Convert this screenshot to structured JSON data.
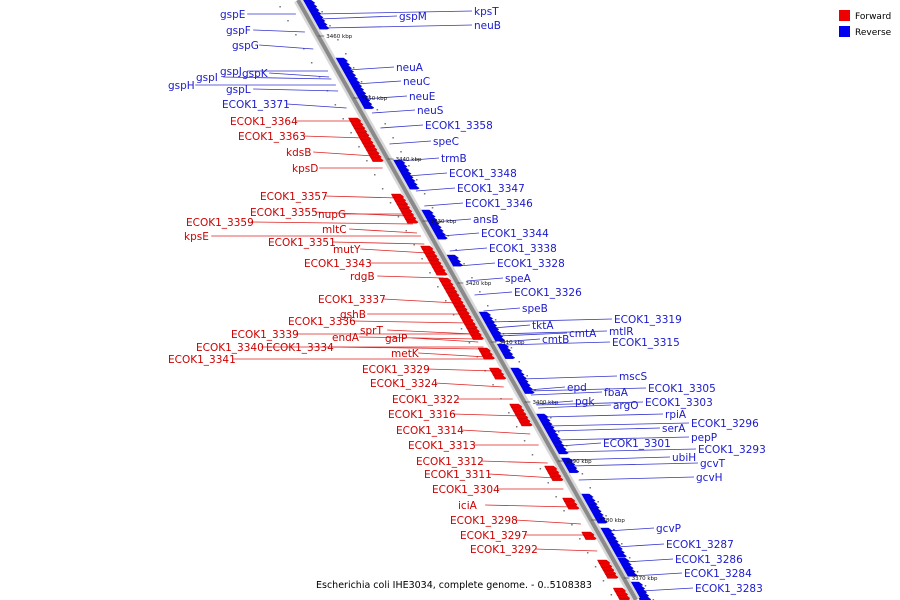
{
  "caption": "Escherichia coli IHE3034, complete genome. - 0..5108383",
  "legend": [
    {
      "label": "Forward",
      "color": "#ee0000"
    },
    {
      "label": "Reverse",
      "color": "#0000ee"
    }
  ],
  "ticks": [
    "3460 kbp",
    "3450 kbp",
    "3440 kbp",
    "3430 kbp",
    "3420 kbp",
    "3410 kbp",
    "3400 kbp",
    "3390 kbp",
    "3380 kbp",
    "3370 kbp"
  ],
  "left_labels": [
    {
      "text": "gspE",
      "color": "rev"
    },
    {
      "text": "gspF",
      "color": "rev"
    },
    {
      "text": "gspG",
      "color": "rev"
    },
    {
      "text": "gspJ",
      "color": "rev"
    },
    {
      "text": "gspI",
      "color": "rev"
    },
    {
      "text": "gspK",
      "color": "rev"
    },
    {
      "text": "gspH",
      "color": "rev"
    },
    {
      "text": "gspL",
      "color": "rev"
    },
    {
      "text": "ECOK1_3371",
      "color": "rev"
    },
    {
      "text": "ECOK1_3364",
      "color": "fwd"
    },
    {
      "text": "ECOK1_3363",
      "color": "fwd"
    },
    {
      "text": "kdsB",
      "color": "fwd"
    },
    {
      "text": "kpsD",
      "color": "fwd"
    },
    {
      "text": "ECOK1_3357",
      "color": "fwd"
    },
    {
      "text": "ECOK1_3355",
      "color": "fwd"
    },
    {
      "text": "nupG",
      "color": "fwd"
    },
    {
      "text": "ECOK1_3359",
      "color": "fwd"
    },
    {
      "text": "mltC",
      "color": "fwd"
    },
    {
      "text": "kpsE",
      "color": "fwd"
    },
    {
      "text": "ECOK1_3351",
      "color": "fwd"
    },
    {
      "text": "mutY",
      "color": "fwd"
    },
    {
      "text": "ECOK1_3343",
      "color": "fwd"
    },
    {
      "text": "rdgB",
      "color": "fwd"
    },
    {
      "text": "ECOK1_3337",
      "color": "fwd"
    },
    {
      "text": "gshB",
      "color": "fwd"
    },
    {
      "text": "ECOK1_3336",
      "color": "fwd"
    },
    {
      "text": "sprT",
      "color": "fwd"
    },
    {
      "text": "ECOK1_3339",
      "color": "fwd"
    },
    {
      "text": "endA",
      "color": "fwd"
    },
    {
      "text": "galP",
      "color": "fwd"
    },
    {
      "text": "ECOK1_3340",
      "color": "fwd"
    },
    {
      "text": "ECOK1_3334",
      "color": "fwd"
    },
    {
      "text": "metK",
      "color": "fwd"
    },
    {
      "text": "ECOK1_3341",
      "color": "fwd"
    },
    {
      "text": "ECOK1_3329",
      "color": "fwd"
    },
    {
      "text": "ECOK1_3324",
      "color": "fwd"
    },
    {
      "text": "ECOK1_3322",
      "color": "fwd"
    },
    {
      "text": "ECOK1_3316",
      "color": "fwd"
    },
    {
      "text": "ECOK1_3314",
      "color": "fwd"
    },
    {
      "text": "ECOK1_3313",
      "color": "fwd"
    },
    {
      "text": "ECOK1_3312",
      "color": "fwd"
    },
    {
      "text": "ECOK1_3311",
      "color": "fwd"
    },
    {
      "text": "ECOK1_3304",
      "color": "fwd"
    },
    {
      "text": "iciA",
      "color": "fwd"
    },
    {
      "text": "ECOK1_3298",
      "color": "fwd"
    },
    {
      "text": "ECOK1_3297",
      "color": "fwd"
    },
    {
      "text": "ECOK1_3292",
      "color": "fwd"
    }
  ],
  "right_labels": [
    {
      "text": "gspM",
      "color": "rev"
    },
    {
      "text": "kpsT",
      "color": "rev"
    },
    {
      "text": "neuB",
      "color": "rev"
    },
    {
      "text": "neuA",
      "color": "rev"
    },
    {
      "text": "neuC",
      "color": "rev"
    },
    {
      "text": "neuE",
      "color": "rev"
    },
    {
      "text": "neuS",
      "color": "rev"
    },
    {
      "text": "ECOK1_3358",
      "color": "rev"
    },
    {
      "text": "speC",
      "color": "rev"
    },
    {
      "text": "trmB",
      "color": "rev"
    },
    {
      "text": "ECOK1_3348",
      "color": "rev"
    },
    {
      "text": "ECOK1_3347",
      "color": "rev"
    },
    {
      "text": "ECOK1_3346",
      "color": "rev"
    },
    {
      "text": "ansB",
      "color": "rev"
    },
    {
      "text": "ECOK1_3344",
      "color": "rev"
    },
    {
      "text": "ECOK1_3338",
      "color": "rev"
    },
    {
      "text": "ECOK1_3328",
      "color": "rev"
    },
    {
      "text": "speA",
      "color": "rev"
    },
    {
      "text": "ECOK1_3326",
      "color": "rev"
    },
    {
      "text": "speB",
      "color": "rev"
    },
    {
      "text": "ECOK1_3319",
      "color": "rev"
    },
    {
      "text": "tktA",
      "color": "rev"
    },
    {
      "text": "cmtA",
      "color": "rev"
    },
    {
      "text": "mtlR",
      "color": "rev"
    },
    {
      "text": "cmtB",
      "color": "rev"
    },
    {
      "text": "ECOK1_3315",
      "color": "rev"
    },
    {
      "text": "mscS",
      "color": "rev"
    },
    {
      "text": "epd",
      "color": "rev"
    },
    {
      "text": "fbaA",
      "color": "rev"
    },
    {
      "text": "ECOK1_3305",
      "color": "rev"
    },
    {
      "text": "pgk",
      "color": "rev"
    },
    {
      "text": "argO",
      "color": "rev"
    },
    {
      "text": "ECOK1_3303",
      "color": "rev"
    },
    {
      "text": "rpiA",
      "color": "rev"
    },
    {
      "text": "serA",
      "color": "rev"
    },
    {
      "text": "ECOK1_3296",
      "color": "rev"
    },
    {
      "text": "pepP",
      "color": "rev"
    },
    {
      "text": "ECOK1_3301",
      "color": "rev"
    },
    {
      "text": "ECOK1_3293",
      "color": "rev"
    },
    {
      "text": "ubiH",
      "color": "rev"
    },
    {
      "text": "gcvT",
      "color": "rev"
    },
    {
      "text": "gcvH",
      "color": "rev"
    },
    {
      "text": "gcvP",
      "color": "rev"
    },
    {
      "text": "ECOK1_3287",
      "color": "rev"
    },
    {
      "text": "ECOK1_3286",
      "color": "rev"
    },
    {
      "text": "ECOK1_3284",
      "color": "rev"
    },
    {
      "text": "ECOK1_3283",
      "color": "rev"
    }
  ]
}
